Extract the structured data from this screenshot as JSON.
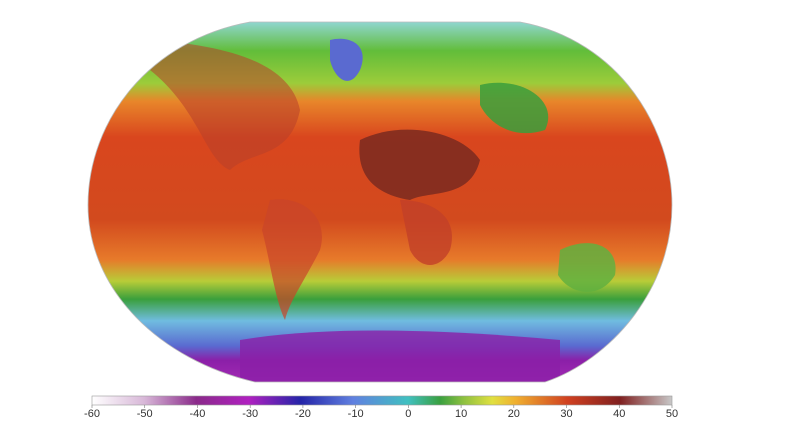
{
  "colorbar": {
    "range": [
      -60,
      50
    ],
    "ticks": [
      -60,
      -50,
      -40,
      -30,
      -20,
      -10,
      0,
      10,
      20,
      30,
      40,
      50
    ]
  }
}
